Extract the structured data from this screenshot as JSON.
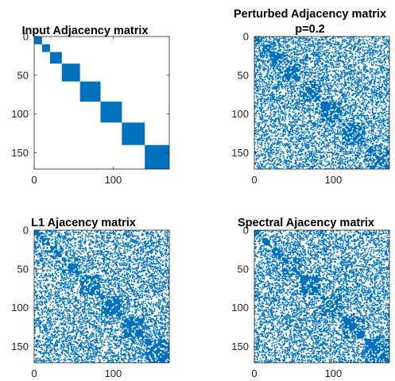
{
  "chart_data": [
    {
      "type": "scatter",
      "title": "Input Adjacency matrix",
      "subtitle": "",
      "n": 171,
      "block_boundaries": [
        0,
        10,
        20,
        35,
        58,
        84,
        111,
        140,
        171
      ],
      "p": 0,
      "xlim": [
        0,
        171
      ],
      "ylim": [
        0,
        171
      ],
      "xticks": [
        0,
        100
      ],
      "yticks": [
        0,
        50,
        100,
        150
      ],
      "xtick_labels": [
        "0",
        "100"
      ],
      "ytick_labels": [
        "0",
        "50",
        "100",
        "150"
      ],
      "y_reversed": true,
      "grid": false,
      "color": "#0072BD"
    },
    {
      "type": "scatter",
      "title": "Perturbed Adjacency matrix",
      "subtitle": "p=0.2",
      "n": 171,
      "block_boundaries": [
        0,
        10,
        20,
        35,
        58,
        84,
        111,
        140,
        171
      ],
      "p": 0.2,
      "xlim": [
        0,
        171
      ],
      "ylim": [
        0,
        171
      ],
      "xticks": [
        0,
        100
      ],
      "yticks": [
        0,
        50,
        100,
        150
      ],
      "xtick_labels": [
        "0",
        "100"
      ],
      "ytick_labels": [
        "0",
        "50",
        "100",
        "150"
      ],
      "y_reversed": true,
      "grid": false,
      "color": "#0072BD"
    },
    {
      "type": "scatter",
      "title": "L1 Ajacency matrix",
      "subtitle": "",
      "n": 171,
      "block_boundaries": [
        0,
        10,
        20,
        35,
        58,
        84,
        111,
        140,
        171
      ],
      "p": 0.2,
      "xlim": [
        0,
        171
      ],
      "ylim": [
        0,
        171
      ],
      "xticks": [
        0,
        100
      ],
      "yticks": [
        0,
        50,
        100,
        150
      ],
      "xtick_labels": [
        "0",
        "100"
      ],
      "ytick_labels": [
        "0",
        "50",
        "100",
        "150"
      ],
      "y_reversed": true,
      "grid": false,
      "color": "#0072BD"
    },
    {
      "type": "scatter",
      "title": "Spectral Ajacency matrix",
      "subtitle": "",
      "n": 171,
      "block_boundaries": [
        0,
        10,
        20,
        35,
        58,
        84,
        111,
        140,
        171
      ],
      "p": 0.2,
      "xlim": [
        0,
        171
      ],
      "ylim": [
        0,
        171
      ],
      "xticks": [
        0,
        100
      ],
      "yticks": [
        0,
        50,
        100,
        150
      ],
      "xtick_labels": [
        "0",
        "100"
      ],
      "ytick_labels": [
        "0",
        "50",
        "100",
        "150"
      ],
      "y_reversed": true,
      "grid": false,
      "color": "#0072BD"
    }
  ]
}
